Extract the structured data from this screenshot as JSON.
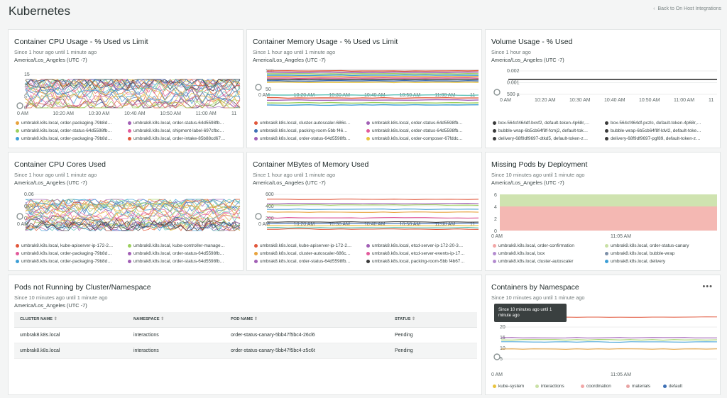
{
  "header": {
    "title": "Kubernetes",
    "back_link": "Back to On Host Integrations"
  },
  "cards": {
    "cpu_pct": {
      "title": "Container CPU Usage - % Used vs Limit",
      "since": "Since 1 hour ago until 1 minute ago",
      "tz": "America/Los_Angeles (UTC -7)"
    },
    "mem_pct": {
      "title": "Container Memory Usage - % Used vs Limit",
      "since": "Since 1 hour ago until 1 minute ago",
      "tz": "America/Los_Angeles (UTC -7)"
    },
    "vol_pct": {
      "title": "Volume Usage - % Used",
      "since": "Since 1 hour ago",
      "tz": "America/Los_Angeles (UTC -7)"
    },
    "cpu_cores": {
      "title": "Container CPU Cores Used",
      "since": "Since 1 hour ago until 1 minute ago",
      "tz": "America/Los_Angeles (UTC -7)"
    },
    "mem_mb": {
      "title": "Container MBytes of Memory Used",
      "since": "Since 1 hour ago until 1 minute ago",
      "tz": "America/Los_Angeles (UTC -7)"
    },
    "missing": {
      "title": "Missing Pods by Deployment",
      "since": "Since 10 minutes ago until 1 minute ago",
      "tz": "America/Los_Angeles (UTC -7)"
    },
    "pods": {
      "title": "Pods not Running by Cluster/Namespace",
      "since": "Since 10 minutes ago until 1 minute ago",
      "tz": "America/Los_Angeles (UTC -7)"
    },
    "containers": {
      "title": "Containers by Namespace",
      "since": "Since 10 minutes ago until 1 minute ago",
      "tooltip": "Since 10 minutes ago until 1 minute ago",
      "menu": "•••"
    }
  },
  "legends": {
    "cpu_pct": [
      {
        "t": "umbrak8.k8s.local, order-packaging-79b8d…",
        "c": "#e8a33d"
      },
      {
        "t": "umbrak8.k8s.local, order-status-64d5598fb…",
        "c": "#a15fb5"
      },
      {
        "t": "umbrak8.k8s.local, order-status-64d5598fb…",
        "c": "#9bcf5d"
      },
      {
        "t": "umbrak8.k8s.local, shipment-label-697cfbc…",
        "c": "#e25a9b"
      },
      {
        "t": "umbrak8.k8s.local, order-packaging-79b8d…",
        "c": "#3d9fd6"
      },
      {
        "t": "umbrak8.k8s.local, order-intake-85b88cd67…",
        "c": "#e1573b"
      }
    ],
    "mem_pct": [
      {
        "t": "umbrak8.k8s.local, cluster-autoscaler-686c…",
        "c": "#e1573b"
      },
      {
        "t": "umbrak8.k8s.local, order-status-64d5598fb…",
        "c": "#a15fb5"
      },
      {
        "t": "umbrak8.k8s.local, packing-room-5bb f46…",
        "c": "#3d6fb5"
      },
      {
        "t": "umbrak8.k8s.local, order-status-64d5598fb…",
        "c": "#e25a9b"
      },
      {
        "t": "umbrak8.k8s.local, order-status-64d5598fb…",
        "c": "#a15fb5"
      },
      {
        "t": "umbrak8.k8s.local, order-composer-67fddc…",
        "c": "#e8c33d"
      }
    ],
    "vol_pct": [
      {
        "t": "box-564cf464df-bxvf2, default-token-4p68r,…",
        "c": "#3a3a3a"
      },
      {
        "t": "box-564cf464df-pczlc, default-token-4p68r,…",
        "c": "#3a3a3a"
      },
      {
        "t": "bubble-wrap-6b5cb64f8f-fcmj2, default-tok…",
        "c": "#3a3a3a"
      },
      {
        "t": "bubble-wrap-6b5cb64f8f-ldvl2, default-toke…",
        "c": "#3a3a3a"
      },
      {
        "t": "delivery-68f9df9697-dtkd5, default-token-z…",
        "c": "#3a3a3a"
      },
      {
        "t": "delivery-68f9df9697-pgf89, default-token-z…",
        "c": "#3a3a3a"
      }
    ],
    "cpu_cores": [
      {
        "t": "umbrak8.k8s.local, kube-apiserver-ip-172-2…",
        "c": "#e1573b"
      },
      {
        "t": "umbrak8.k8s.local, kube-controller-manage…",
        "c": "#9bcf5d"
      },
      {
        "t": "umbrak8.k8s.local, order-packaging-79b8d…",
        "c": "#e25a9b"
      },
      {
        "t": "umbrak8.k8s.local, order-status-64d5598fb…",
        "c": "#a15fb5"
      },
      {
        "t": "umbrak8.k8s.local, order-packaging-79b8d…",
        "c": "#3d9fd6"
      },
      {
        "t": "umbrak8.k8s.local, order-status-64d5598fb…",
        "c": "#a15fb5"
      }
    ],
    "mem_mb": [
      {
        "t": "umbrak8.k8s.local, kube-apiserver-ip-172-2…",
        "c": "#e1573b"
      },
      {
        "t": "umbrak8.k8s.local, etcd-server-ip-172-20-3…",
        "c": "#a15fb5"
      },
      {
        "t": "umbrak8.k8s.local, cluster-autoscaler-686c…",
        "c": "#e8a33d"
      },
      {
        "t": "umbrak8.k8s.local, etcd-server-events-ip-17…",
        "c": "#e25a9b"
      },
      {
        "t": "umbrak8.k8s.local, order-status-64d5598fb…",
        "c": "#a15fb5"
      },
      {
        "t": "umbrak8.k8s.local, packing-room-5bb f4b67…",
        "c": "#3a3a3a"
      }
    ],
    "missing": [
      {
        "t": "umbrak8.k8s.local, order-confirmation",
        "c": "#f2a7a7"
      },
      {
        "t": "umbrak8.k8s.local, order-status-canary",
        "c": "#c9e0a5"
      },
      {
        "t": "umbrak8.k8s.local, box",
        "c": "#b48cd0"
      },
      {
        "t": "umbrak8.k8s.local, bubble-wrap",
        "c": "#7c8fa8"
      },
      {
        "t": "umbrak8.k8s.local, cluster-autoscaler",
        "c": "#b48cd0"
      },
      {
        "t": "umbrak8.k8s.local, delivery",
        "c": "#3d9fd6"
      }
    ],
    "containers": [
      {
        "t": "kube-system",
        "c": "#e8c33d"
      },
      {
        "t": "interactions",
        "c": "#c9e0a5"
      },
      {
        "t": "coordination",
        "c": "#f2a7a7"
      },
      {
        "t": "materials",
        "c": "#e8a3a3"
      },
      {
        "t": "default",
        "c": "#3d6fb5"
      }
    ]
  },
  "axes": {
    "hour_ticks": [
      "0 AM",
      "10:20 AM",
      "10:30 AM",
      "10:40 AM",
      "10:50 AM",
      "11:00 AM",
      "11"
    ],
    "short_ticks": [
      "0 AM",
      "11:05 AM"
    ],
    "cpu_pct_y": [
      "15",
      "10",
      "5",
      "0"
    ],
    "mem_pct_y": [
      "100",
      "50"
    ],
    "vol_pct_y": [
      "0.002",
      "0.001",
      "500 µ"
    ],
    "cpu_cores_y": [
      "0.06",
      "0.04",
      "0.02"
    ],
    "mem_mb_y": [
      "600",
      "400",
      "200"
    ],
    "missing_y": [
      "6",
      "4",
      "2",
      "0"
    ],
    "containers_y": [
      "20",
      "15",
      "10",
      "5"
    ]
  },
  "table": {
    "headers": [
      "CLUSTER NAME",
      "NAMESPACE",
      "POD NAME",
      "STATUS"
    ],
    "rows": [
      [
        "umbrak8.k8s.local",
        "interactions",
        "order-status-canary-5bb47f5bc4-26cl6",
        "Pending"
      ],
      [
        "umbrak8.k8s.local",
        "interactions",
        "order-status-canary-5bb47f5bc4-z5c6t",
        "Pending"
      ]
    ]
  },
  "colors": {
    "series": [
      "#e1573b",
      "#a15fb5",
      "#9bcf5d",
      "#3d9fd6",
      "#e8a33d",
      "#e25a9b",
      "#3a3a3a",
      "#3d6fb5",
      "#e8c33d",
      "#5ec2b7"
    ]
  }
}
